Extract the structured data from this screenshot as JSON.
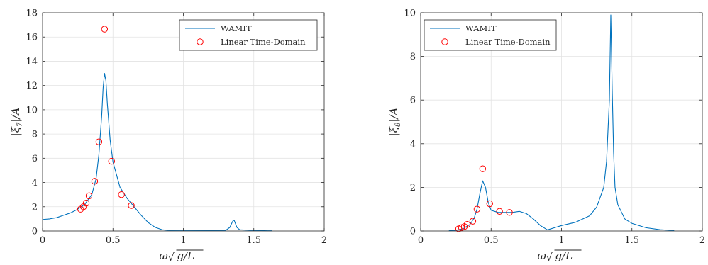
{
  "chart_data": [
    {
      "type": "line",
      "xlabel": "ω√(g/L)",
      "ylabel": "|ξ7|/A",
      "xlim": [
        0,
        2
      ],
      "ylim": [
        0,
        18
      ],
      "xticks": [
        0,
        0.5,
        1,
        1.5,
        2
      ],
      "yticks": [
        0,
        2,
        4,
        6,
        8,
        10,
        12,
        14,
        16,
        18
      ],
      "xtick_labels": [
        "0",
        "0.5",
        "1",
        "1.5",
        "2"
      ],
      "ytick_labels": [
        "0",
        "2",
        "4",
        "6",
        "8",
        "10",
        "12",
        "14",
        "16",
        "18"
      ],
      "grid": true,
      "legend_position": "top-right",
      "series": [
        {
          "name": "WAMIT",
          "style": "line",
          "color": "#0072BD",
          "x": [
            0,
            0.05,
            0.1,
            0.15,
            0.2,
            0.25,
            0.3,
            0.35,
            0.38,
            0.4,
            0.42,
            0.43,
            0.44,
            0.45,
            0.46,
            0.48,
            0.5,
            0.55,
            0.6,
            0.65,
            0.7,
            0.75,
            0.8,
            0.85,
            0.9,
            1.0,
            1.1,
            1.2,
            1.3,
            1.33,
            1.35,
            1.36,
            1.37,
            1.38,
            1.4,
            1.5,
            1.6,
            1.63
          ],
          "y": [
            0.95,
            1.0,
            1.1,
            1.3,
            1.5,
            1.8,
            2.2,
            3.0,
            4.3,
            6.3,
            9.5,
            11.8,
            13.0,
            12.4,
            10.5,
            7.5,
            5.7,
            3.6,
            2.7,
            2.0,
            1.3,
            0.7,
            0.3,
            0.1,
            0.05,
            0.06,
            0.05,
            0.04,
            0.05,
            0.3,
            0.8,
            0.9,
            0.6,
            0.3,
            0.1,
            0.05,
            0.02,
            0.02
          ]
        },
        {
          "name": "Linear Time-Domain",
          "style": "markers",
          "color": "#ff0000",
          "x": [
            0.27,
            0.29,
            0.31,
            0.33,
            0.37,
            0.4,
            0.44,
            0.49,
            0.56,
            0.63
          ],
          "y": [
            1.8,
            2.0,
            2.3,
            2.9,
            4.1,
            7.35,
            16.65,
            5.75,
            3.0,
            2.1
          ]
        }
      ]
    },
    {
      "type": "line",
      "xlabel": "ω√(g/L)",
      "ylabel": "|ξ8|/A",
      "xlim": [
        0,
        2
      ],
      "ylim": [
        0,
        10
      ],
      "xticks": [
        0,
        0.5,
        1,
        1.5,
        2
      ],
      "yticks": [
        0,
        2,
        4,
        6,
        8,
        10
      ],
      "xtick_labels": [
        "0",
        "0.5",
        "1",
        "1.5",
        "2"
      ],
      "ytick_labels": [
        "0",
        "2",
        "4",
        "6",
        "8",
        "10"
      ],
      "grid": true,
      "legend_position": "top-left",
      "series": [
        {
          "name": "WAMIT",
          "style": "line",
          "color": "#0072BD",
          "x": [
            0.2,
            0.25,
            0.3,
            0.35,
            0.38,
            0.4,
            0.42,
            0.44,
            0.46,
            0.48,
            0.5,
            0.55,
            0.6,
            0.65,
            0.7,
            0.75,
            0.8,
            0.85,
            0.9,
            0.95,
            1.0,
            1.1,
            1.2,
            1.25,
            1.3,
            1.32,
            1.34,
            1.35,
            1.36,
            1.37,
            1.38,
            1.4,
            1.45,
            1.5,
            1.6,
            1.7,
            1.8
          ],
          "y": [
            0.01,
            0.03,
            0.1,
            0.3,
            0.6,
            1.0,
            1.7,
            2.3,
            2.0,
            1.3,
            0.95,
            0.85,
            0.85,
            0.85,
            0.9,
            0.8,
            0.55,
            0.25,
            0.05,
            0.15,
            0.25,
            0.4,
            0.7,
            1.1,
            2.0,
            3.2,
            6.0,
            9.9,
            6.5,
            3.6,
            2.0,
            1.2,
            0.55,
            0.35,
            0.15,
            0.06,
            0.02
          ]
        },
        {
          "name": "Linear Time-Domain",
          "style": "markers",
          "color": "#ff0000",
          "x": [
            0.27,
            0.29,
            0.31,
            0.33,
            0.37,
            0.4,
            0.44,
            0.49,
            0.56,
            0.63
          ],
          "y": [
            0.1,
            0.15,
            0.2,
            0.3,
            0.45,
            1.0,
            2.85,
            1.25,
            0.9,
            0.85
          ]
        }
      ]
    }
  ]
}
